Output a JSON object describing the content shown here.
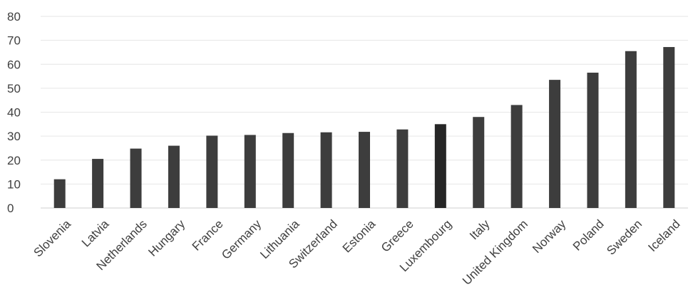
{
  "chart_data": {
    "type": "bar",
    "categories": [
      "Slovenia",
      "Latvia",
      "Netherlands",
      "Hungary",
      "France",
      "Germany",
      "Lithuania",
      "Switzerland",
      "Estonia",
      "Greece",
      "Luxembourg",
      "Italy",
      "United Kingdom",
      "Norway",
      "Poland",
      "Sweden",
      "Iceland"
    ],
    "values": [
      12,
      20.5,
      24.8,
      26,
      30.2,
      30.5,
      31.3,
      31.6,
      31.8,
      32.8,
      35,
      38,
      43,
      53.5,
      56.5,
      65.5,
      67.2
    ],
    "highlight_index": 10,
    "yticks": [
      0,
      10,
      20,
      30,
      40,
      50,
      60,
      70,
      80
    ],
    "ylim": [
      0,
      80
    ],
    "grid": true,
    "colors": {
      "bar": "#3d3d3d",
      "highlight": "#262626",
      "text": "#404040",
      "grid": "#e6e6e6"
    }
  }
}
